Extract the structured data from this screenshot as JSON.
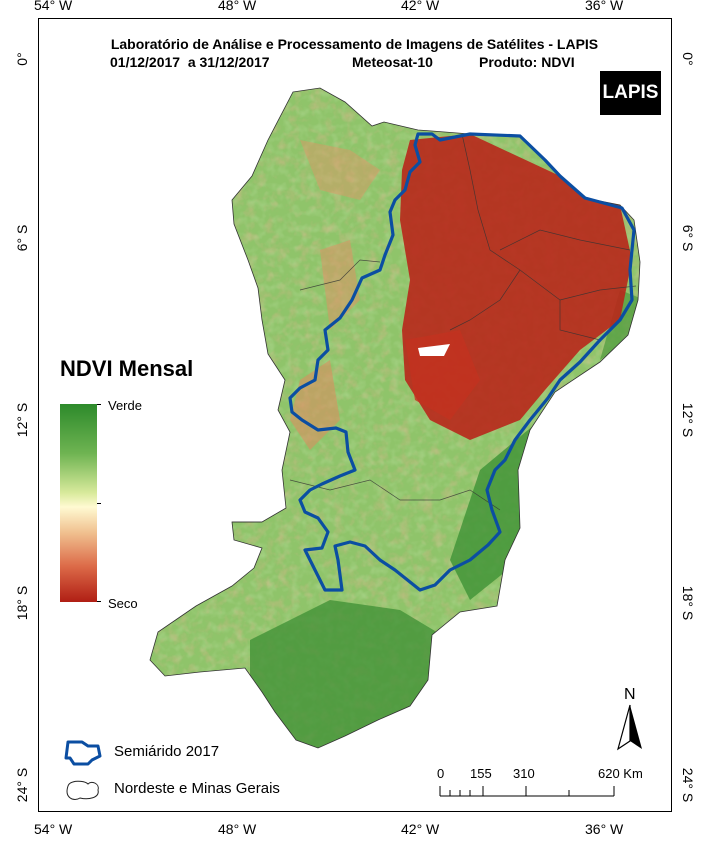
{
  "title": {
    "line1": "Laboratório de Análise e Processamento de Imagens de Satélites - LAPIS",
    "period": "01/12/2017  a 31/12/2017",
    "satellite": "Meteosat-10",
    "product": "Produto: NDVI"
  },
  "logo": {
    "text": "LAPIS"
  },
  "axes": {
    "longitude_labels": [
      "54° W",
      "48° W",
      "42° W",
      "36° W"
    ],
    "latitude_labels": [
      "0°",
      "6° S",
      "12° S",
      "18° S",
      "24° S"
    ]
  },
  "legend": {
    "title": "NDVI Mensal",
    "high_label": "Verde",
    "low_label": "Seco",
    "colors": {
      "high": "#2d8a2b",
      "mid": "#fffad2",
      "low": "#b01e14"
    },
    "semiarid_label": "Semiárido 2017",
    "region_label": "Nordeste e Minas Gerais",
    "semiarid_color": "#0b4ea2"
  },
  "north_arrow": {
    "label": "N"
  },
  "scale_bar": {
    "labels": [
      "0",
      "155",
      "310",
      "620 Km"
    ]
  }
}
